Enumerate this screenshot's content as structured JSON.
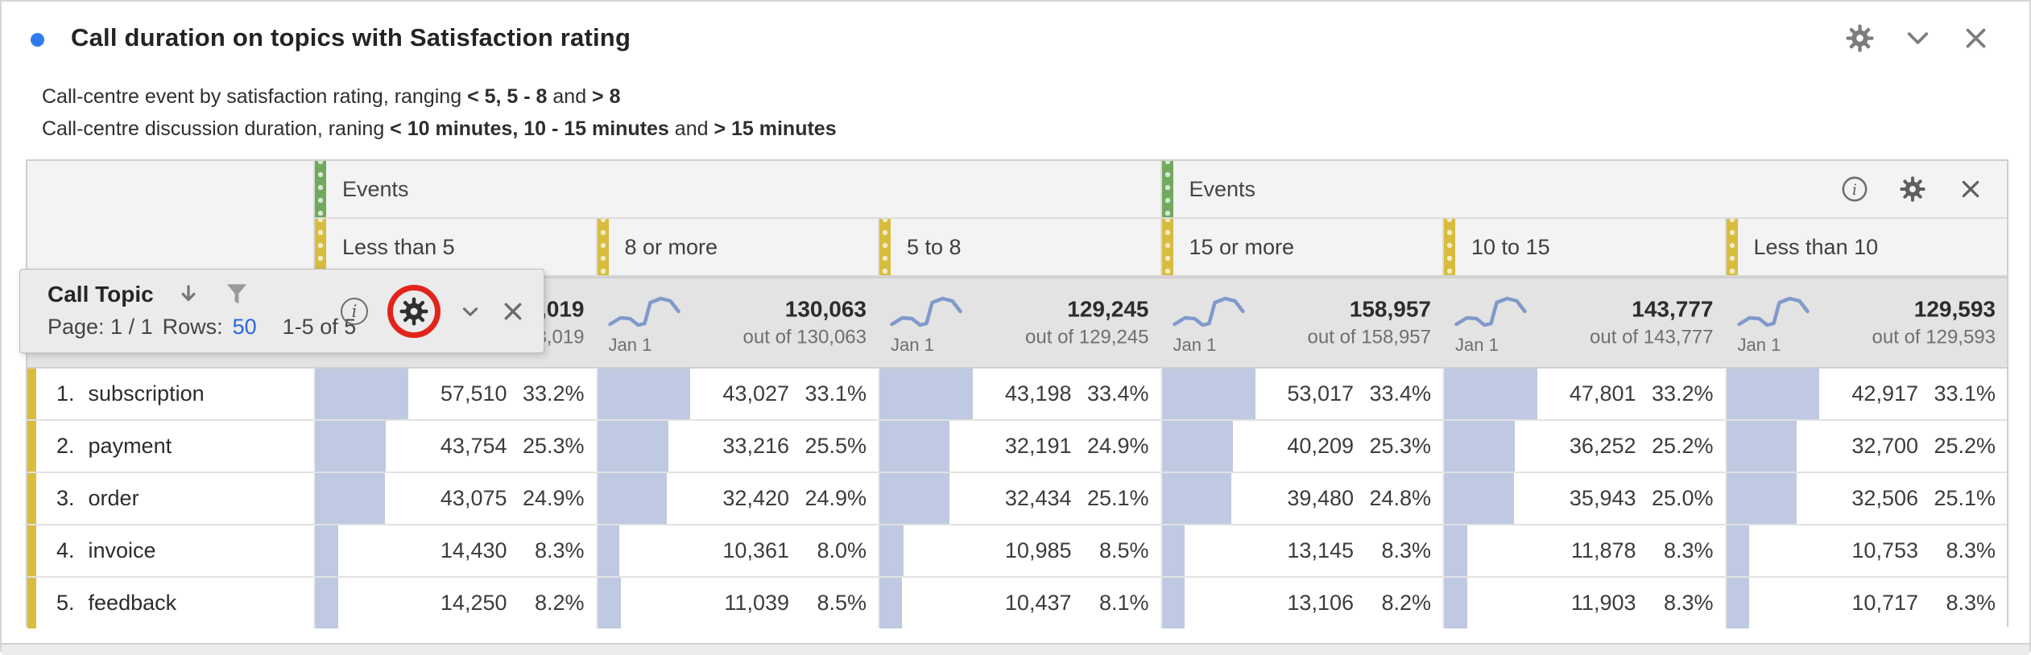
{
  "panel": {
    "title": "Call duration on topics with Satisfaction rating",
    "accent_dot_color": "#2e7bf0",
    "icons": {
      "settings": "gear",
      "collapse": "chevron-down",
      "close": "x"
    }
  },
  "description": {
    "line1": {
      "pre": "Call-centre event by satisfaction rating, ranging ",
      "b1": "< 5, 5 - 8",
      "mid": " and ",
      "b2": "> 8"
    },
    "line2": {
      "pre": "Call-centre discussion duration, raning ",
      "b1": "< 10 minutes, 10 - 15 minutes",
      "mid": " and ",
      "b2": "> 15 minutes"
    }
  },
  "toolbar": {
    "title": "Call Topic",
    "pagination": {
      "page": "Page: 1 / 1",
      "rows_label": "Rows:",
      "rows_value": "50",
      "range": "1-5 of 5"
    },
    "icons": {
      "sort": "arrow-down",
      "filter": "funnel",
      "info": "i",
      "settings": "gear",
      "collapse": "chevron-down",
      "close": "x"
    },
    "annotation_ring_color": "#e2251c"
  },
  "table": {
    "groups": [
      {
        "label": "Events"
      },
      {
        "label": "Events"
      }
    ],
    "colors": {
      "group_strip": "#71a95f",
      "column_strip": "#d8bc3e",
      "row_strip": "#d9bd3f",
      "bar": "#bfc9e2",
      "sparkline": "#8199ca",
      "totals_bg": "#e3e3e3",
      "header_bg": "#f3f3f3"
    },
    "columns": [
      {
        "label": "Less than 5",
        "total": "173,019",
        "out_of": "out of 173,019",
        "spark_label": "Jan 1"
      },
      {
        "label": "8 or more",
        "total": "130,063",
        "out_of": "out of 130,063",
        "spark_label": "Jan 1"
      },
      {
        "label": "5 to 8",
        "total": "129,245",
        "out_of": "out of 129,245",
        "spark_label": "Jan 1"
      },
      {
        "label": "15 or more",
        "total": "158,957",
        "out_of": "out of 158,957",
        "spark_label": "Jan 1"
      },
      {
        "label": "10 to 15",
        "total": "143,777",
        "out_of": "out of 143,777",
        "spark_label": "Jan 1"
      },
      {
        "label": "Less than 10",
        "total": "129,593",
        "out_of": "out of 129,593",
        "spark_label": "Jan 1"
      }
    ],
    "rows": [
      {
        "rank": "1.",
        "label": "subscription",
        "cells": [
          {
            "v": "57,510",
            "p": "33.2%",
            "pct": 33.2
          },
          {
            "v": "43,027",
            "p": "33.1%",
            "pct": 33.1
          },
          {
            "v": "43,198",
            "p": "33.4%",
            "pct": 33.4
          },
          {
            "v": "53,017",
            "p": "33.4%",
            "pct": 33.4
          },
          {
            "v": "47,801",
            "p": "33.2%",
            "pct": 33.2
          },
          {
            "v": "42,917",
            "p": "33.1%",
            "pct": 33.1
          }
        ]
      },
      {
        "rank": "2.",
        "label": "payment",
        "cells": [
          {
            "v": "43,754",
            "p": "25.3%",
            "pct": 25.3
          },
          {
            "v": "33,216",
            "p": "25.5%",
            "pct": 25.5
          },
          {
            "v": "32,191",
            "p": "24.9%",
            "pct": 24.9
          },
          {
            "v": "40,209",
            "p": "25.3%",
            "pct": 25.3
          },
          {
            "v": "36,252",
            "p": "25.2%",
            "pct": 25.2
          },
          {
            "v": "32,700",
            "p": "25.2%",
            "pct": 25.2
          }
        ]
      },
      {
        "rank": "3.",
        "label": "order",
        "cells": [
          {
            "v": "43,075",
            "p": "24.9%",
            "pct": 24.9
          },
          {
            "v": "32,420",
            "p": "24.9%",
            "pct": 24.9
          },
          {
            "v": "32,434",
            "p": "25.1%",
            "pct": 25.1
          },
          {
            "v": "39,480",
            "p": "24.8%",
            "pct": 24.8
          },
          {
            "v": "35,943",
            "p": "25.0%",
            "pct": 25.0
          },
          {
            "v": "32,506",
            "p": "25.1%",
            "pct": 25.1
          }
        ]
      },
      {
        "rank": "4.",
        "label": "invoice",
        "cells": [
          {
            "v": "14,430",
            "p": "8.3%",
            "pct": 8.3
          },
          {
            "v": "10,361",
            "p": "8.0%",
            "pct": 8.0
          },
          {
            "v": "10,985",
            "p": "8.5%",
            "pct": 8.5
          },
          {
            "v": "13,145",
            "p": "8.3%",
            "pct": 8.3
          },
          {
            "v": "11,878",
            "p": "8.3%",
            "pct": 8.3
          },
          {
            "v": "10,753",
            "p": "8.3%",
            "pct": 8.3
          }
        ]
      },
      {
        "rank": "5.",
        "label": "feedback",
        "cells": [
          {
            "v": "14,250",
            "p": "8.2%",
            "pct": 8.2
          },
          {
            "v": "11,039",
            "p": "8.5%",
            "pct": 8.5
          },
          {
            "v": "10,437",
            "p": "8.1%",
            "pct": 8.1
          },
          {
            "v": "13,106",
            "p": "8.2%",
            "pct": 8.2
          },
          {
            "v": "11,903",
            "p": "8.3%",
            "pct": 8.3
          },
          {
            "v": "10,717",
            "p": "8.3%",
            "pct": 8.3
          }
        ]
      }
    ]
  }
}
